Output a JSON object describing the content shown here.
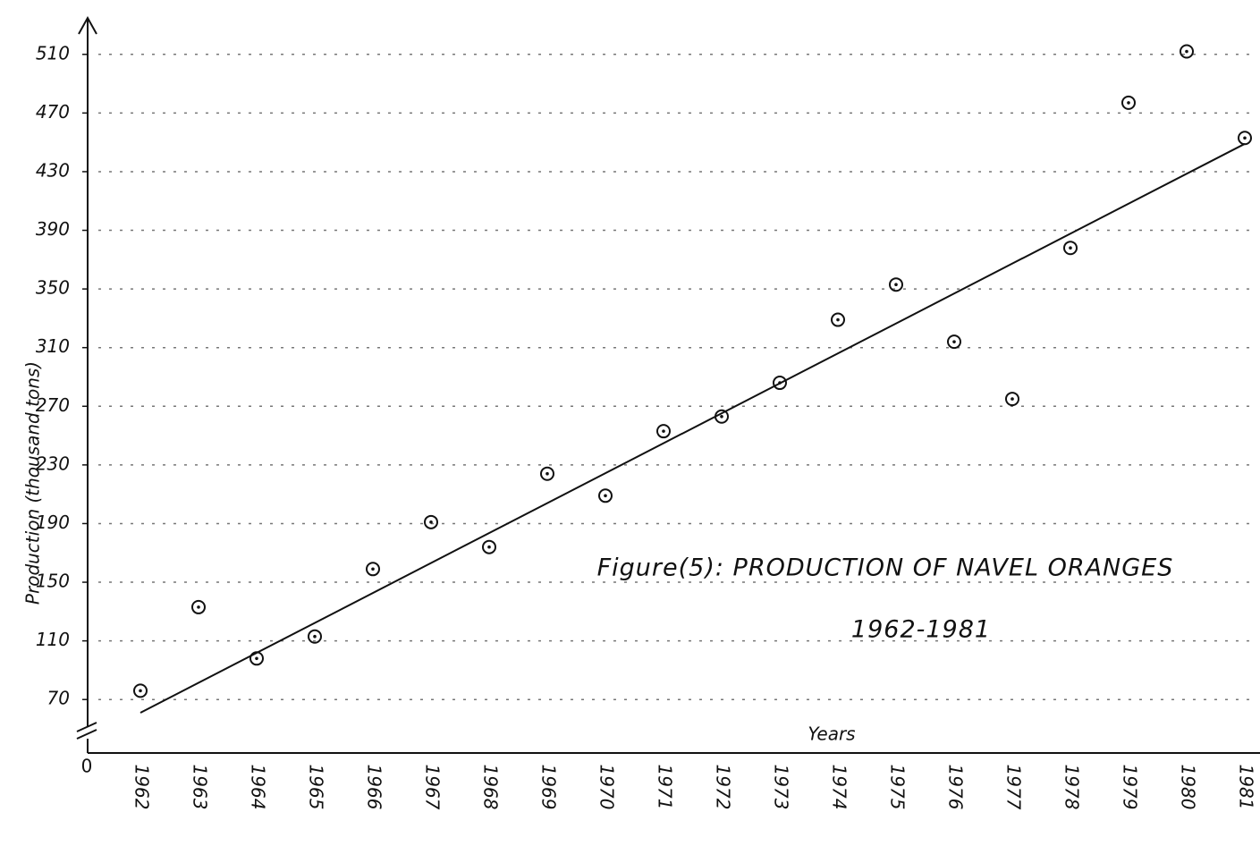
{
  "chart_data": {
    "type": "scatter",
    "title": "Figure(5): PRODUCTION OF NAVEL ORANGES",
    "subtitle": "1962-1981",
    "x_label": "Years",
    "y_label": "Production (thousand tons)",
    "origin_label": "0",
    "categories": [
      "1962",
      "1963",
      "1964",
      "1965",
      "1966",
      "1967",
      "1968",
      "1969",
      "1970",
      "1971",
      "1972",
      "1973",
      "1974",
      "1975",
      "1976",
      "1977",
      "1978",
      "1979",
      "1980",
      "1981"
    ],
    "values": [
      76,
      133,
      98,
      113,
      159,
      191,
      174,
      224,
      209,
      253,
      263,
      286,
      329,
      353,
      314,
      275,
      378,
      477,
      512,
      453
    ],
    "color": "#111111",
    "trend": {
      "x": [
        1962,
        1981
      ],
      "values": [
        61,
        449
      ],
      "color": "#111111"
    },
    "ylim": [
      50,
      530
    ],
    "yticks": [
      70,
      110,
      150,
      190,
      230,
      270,
      310,
      350,
      390,
      430,
      470,
      510
    ],
    "grid": true
  }
}
